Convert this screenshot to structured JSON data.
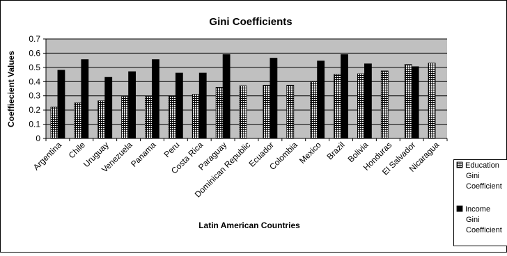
{
  "chart_data": {
    "type": "bar",
    "title": "Gini Coefficients",
    "xlabel": "Latin American Countries",
    "ylabel": "Coeffiecient Values",
    "ylim": [
      0,
      0.7
    ],
    "y_ticks": [
      "0",
      "0.1",
      "0.2",
      "0.3",
      "0.4",
      "0.5",
      "0.6",
      "0.7"
    ],
    "grid": true,
    "legend_position": "right",
    "categories": [
      "Argentina",
      "Chile",
      "Uruguay",
      "Venezuela",
      "Panama",
      "Peru",
      "Costa Rica",
      "Paraguay",
      "Dominican Republic",
      "Ecuador",
      "Colombia",
      "Mexico",
      "Brazil",
      "Bolivia",
      "Honduras",
      "El Salvador",
      "Nicaragua"
    ],
    "series": [
      {
        "name": "Education Gini Coefficient",
        "legend_lines": [
          "Education",
          "Gini",
          "Coefficient"
        ],
        "fill": "hatched",
        "values": [
          0.22,
          0.25,
          0.265,
          0.295,
          0.295,
          0.3,
          0.31,
          0.36,
          0.37,
          0.375,
          0.375,
          0.4,
          0.45,
          0.455,
          0.475,
          0.52,
          0.53
        ]
      },
      {
        "name": "Income Gini Coefficient",
        "legend_lines": [
          "Income",
          "Gini",
          "Coefficient"
        ],
        "fill": "#000000",
        "values": [
          0.48,
          0.555,
          0.43,
          0.47,
          0.555,
          0.46,
          0.46,
          0.59,
          null,
          0.565,
          null,
          0.545,
          0.59,
          0.525,
          null,
          0.505,
          null
        ]
      }
    ],
    "colors": {
      "plot_bg": "#c0c0c0",
      "axis": "#000000"
    }
  }
}
